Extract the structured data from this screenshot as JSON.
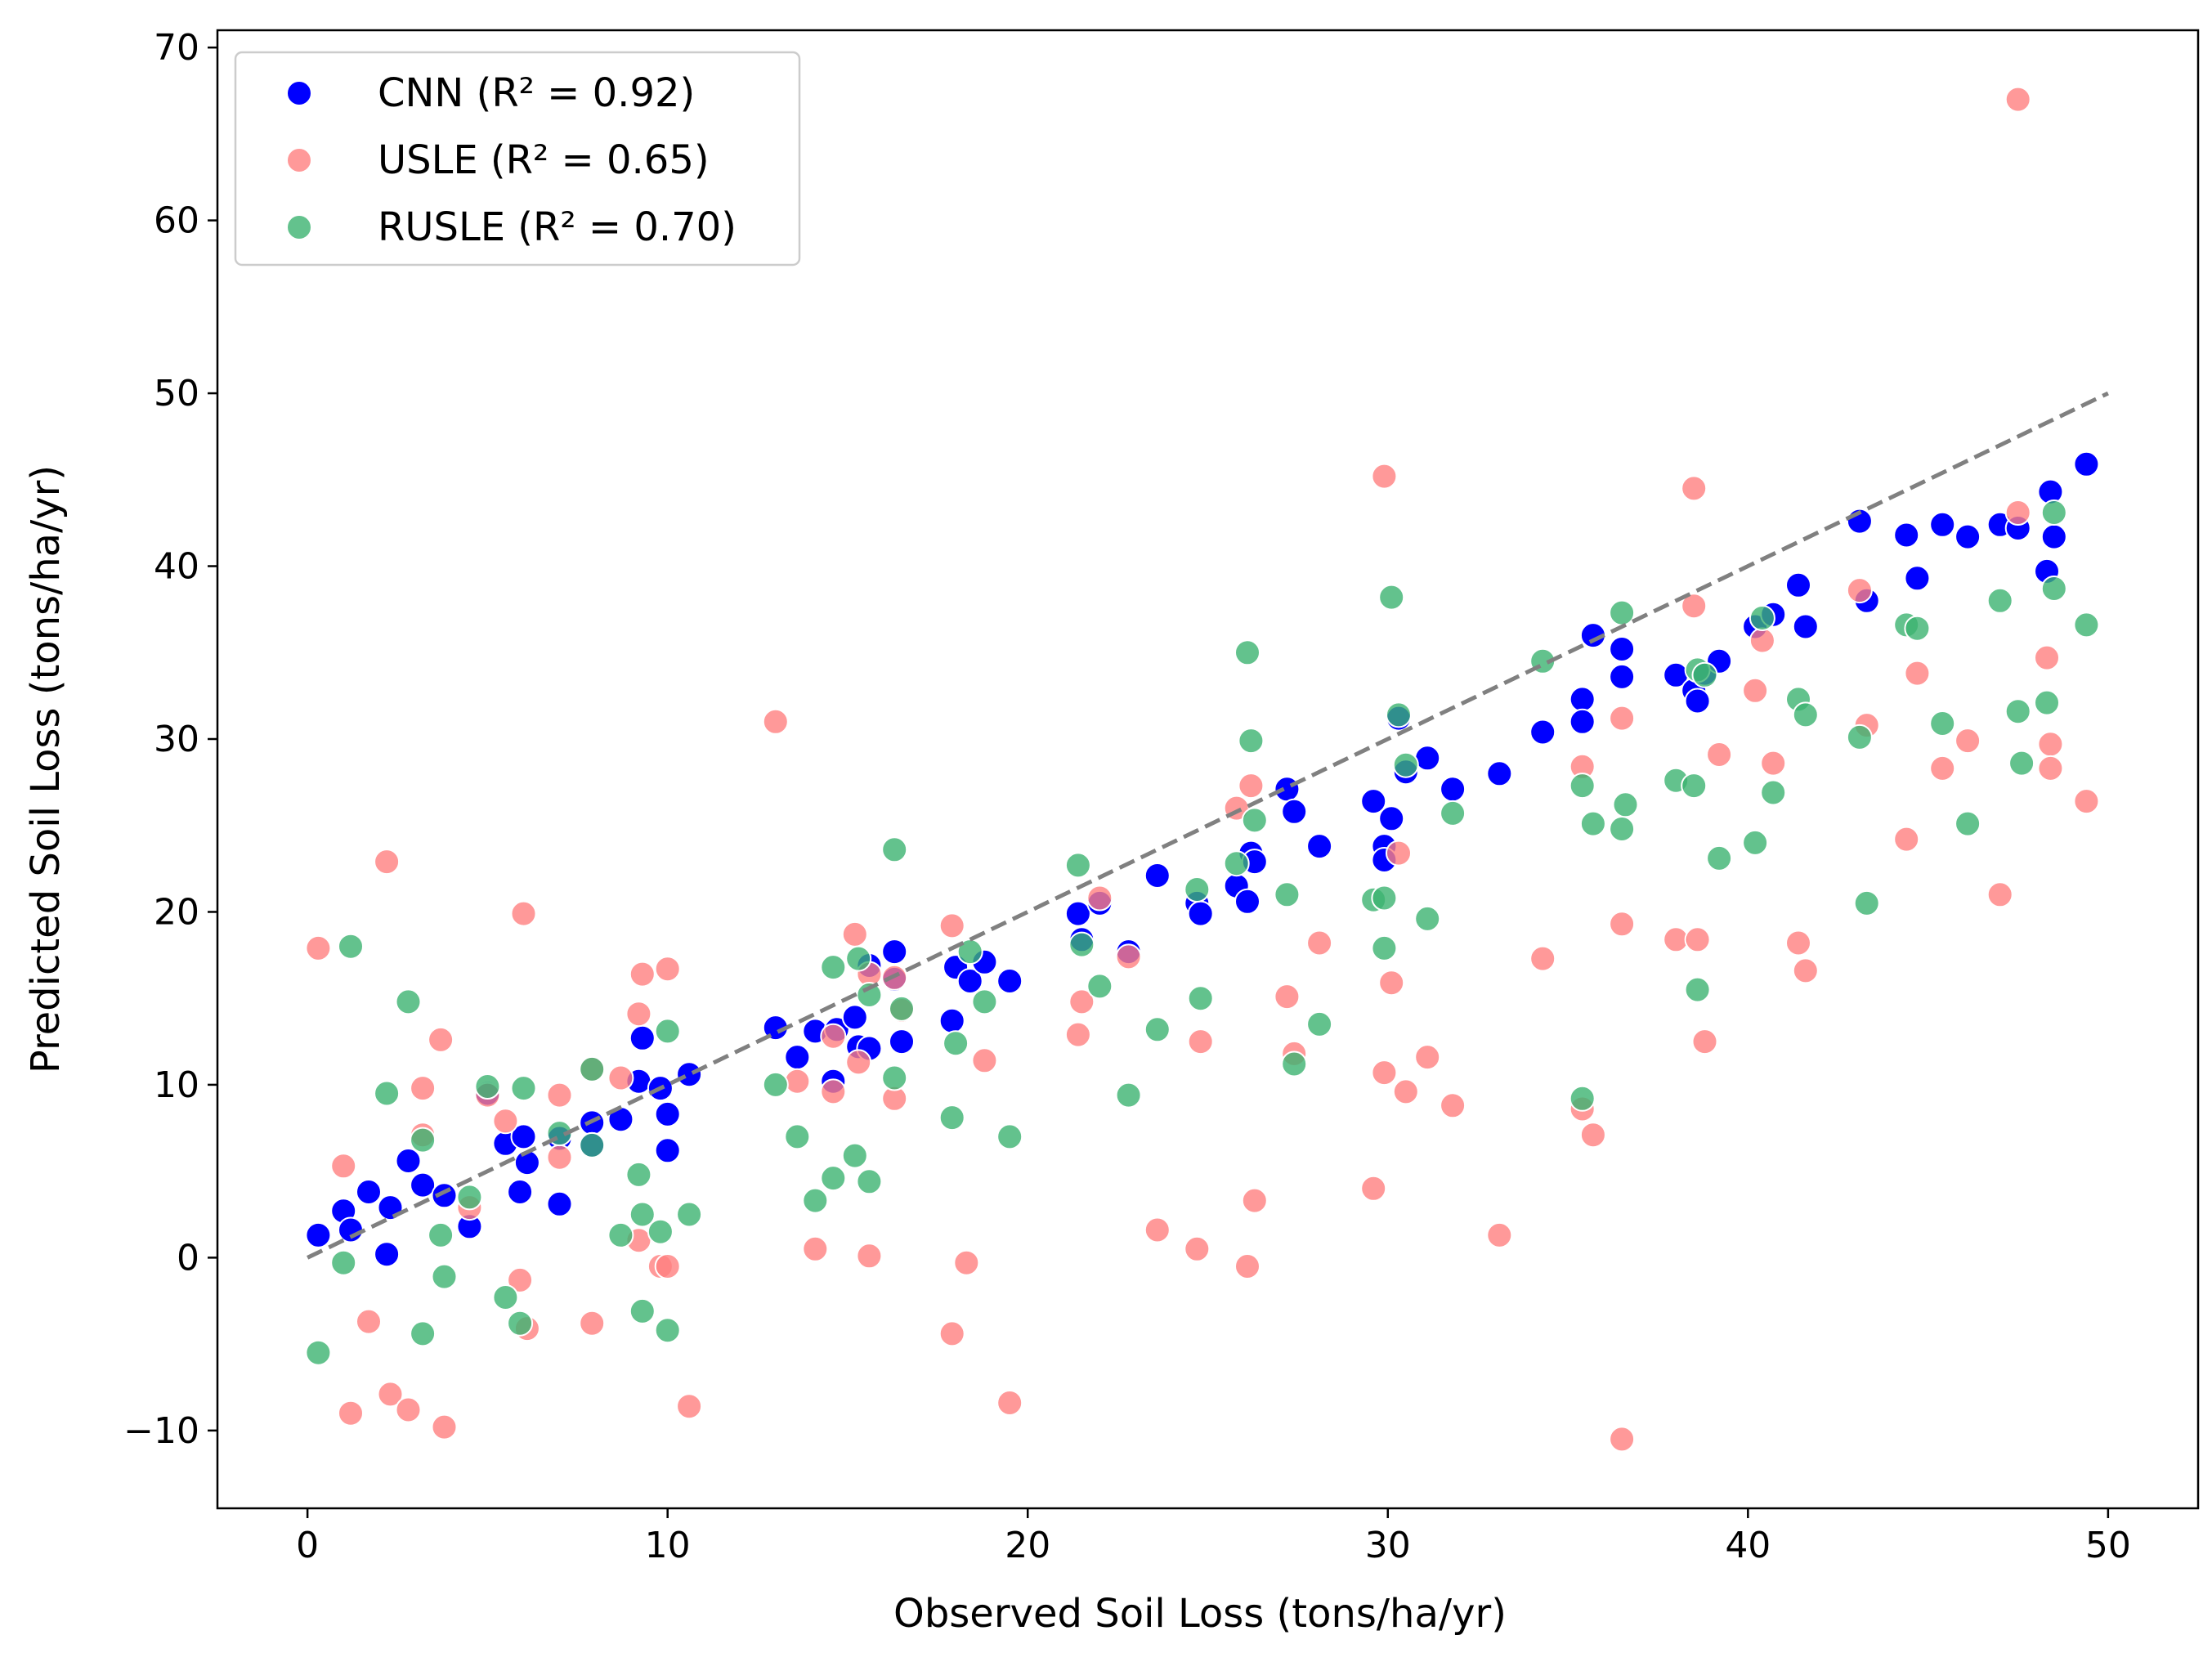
{
  "chart_data": {
    "type": "scatter",
    "title": "",
    "xlabel": "Observed Soil Loss (tons/ha/yr)",
    "ylabel": "Predicted Soil Loss (tons/ha/yr)",
    "xlim": [
      -2.5,
      52.5
    ],
    "ylim": [
      -14.5,
      71
    ],
    "xticks": [
      0,
      10,
      20,
      30,
      40,
      50
    ],
    "yticks": [
      -10,
      0,
      10,
      20,
      30,
      40,
      50,
      60,
      70
    ],
    "ytick_labels": [
      "−10",
      "0",
      "10",
      "20",
      "30",
      "40",
      "50",
      "60",
      "70"
    ],
    "grid": false,
    "legend_position": "top-left",
    "reference_line": {
      "x": [
        0,
        50
      ],
      "y": [
        0,
        50
      ],
      "color": "#808080",
      "style": "dashed"
    },
    "series": [
      {
        "name": "CNN (R² = 0.92)",
        "color": "#0000ff",
        "points": [
          [
            0.3,
            1.3
          ],
          [
            1.0,
            2.7
          ],
          [
            1.2,
            1.6
          ],
          [
            1.7,
            3.8
          ],
          [
            2.2,
            0.2
          ],
          [
            2.3,
            2.9
          ],
          [
            2.8,
            5.6
          ],
          [
            3.2,
            4.2
          ],
          [
            3.8,
            3.6
          ],
          [
            4.5,
            1.8
          ],
          [
            5.0,
            9.5
          ],
          [
            5.5,
            6.6
          ],
          [
            5.9,
            3.8
          ],
          [
            6.0,
            7.0
          ],
          [
            6.1,
            5.5
          ],
          [
            7.0,
            3.1
          ],
          [
            7.0,
            6.9
          ],
          [
            7.9,
            7.8
          ],
          [
            7.9,
            6.5
          ],
          [
            8.7,
            8.0
          ],
          [
            9.2,
            10.2
          ],
          [
            9.3,
            12.7
          ],
          [
            9.8,
            9.8
          ],
          [
            10.0,
            8.3
          ],
          [
            10.0,
            6.2
          ],
          [
            10.6,
            10.6
          ],
          [
            13.0,
            13.3
          ],
          [
            13.6,
            11.6
          ],
          [
            14.1,
            13.1
          ],
          [
            14.6,
            10.2
          ],
          [
            14.7,
            13.2
          ],
          [
            15.2,
            13.9
          ],
          [
            15.3,
            12.2
          ],
          [
            15.6,
            12.1
          ],
          [
            15.6,
            16.9
          ],
          [
            16.3,
            16.1
          ],
          [
            16.3,
            17.7
          ],
          [
            16.5,
            12.5
          ],
          [
            17.9,
            13.7
          ],
          [
            18.0,
            16.8
          ],
          [
            18.4,
            16.0
          ],
          [
            18.8,
            17.1
          ],
          [
            19.5,
            16.0
          ],
          [
            21.4,
            19.9
          ],
          [
            21.5,
            18.4
          ],
          [
            22.0,
            20.5
          ],
          [
            22.8,
            17.7
          ],
          [
            23.6,
            22.1
          ],
          [
            24.7,
            20.5
          ],
          [
            24.8,
            19.9
          ],
          [
            25.8,
            21.5
          ],
          [
            26.1,
            20.6
          ],
          [
            26.2,
            23.4
          ],
          [
            26.3,
            22.9
          ],
          [
            27.2,
            27.1
          ],
          [
            27.4,
            25.8
          ],
          [
            28.1,
            23.8
          ],
          [
            29.6,
            26.4
          ],
          [
            29.9,
            23.8
          ],
          [
            29.9,
            23.0
          ],
          [
            30.1,
            25.4
          ],
          [
            30.3,
            31.2
          ],
          [
            30.5,
            28.1
          ],
          [
            31.1,
            28.9
          ],
          [
            31.8,
            27.1
          ],
          [
            33.1,
            28.0
          ],
          [
            34.3,
            30.4
          ],
          [
            35.4,
            32.3
          ],
          [
            35.4,
            31.0
          ],
          [
            35.7,
            36.0
          ],
          [
            36.5,
            35.2
          ],
          [
            36.5,
            33.6
          ],
          [
            38.0,
            33.7
          ],
          [
            38.5,
            32.8
          ],
          [
            38.6,
            32.2
          ],
          [
            38.8,
            33.8
          ],
          [
            39.2,
            34.5
          ],
          [
            40.2,
            36.5
          ],
          [
            40.7,
            37.2
          ],
          [
            41.4,
            38.9
          ],
          [
            41.6,
            36.5
          ],
          [
            43.1,
            42.6
          ],
          [
            43.3,
            38.0
          ],
          [
            44.4,
            41.8
          ],
          [
            44.7,
            39.3
          ],
          [
            45.4,
            42.4
          ],
          [
            46.1,
            41.7
          ],
          [
            47.0,
            42.4
          ],
          [
            47.5,
            42.2
          ],
          [
            48.3,
            39.7
          ],
          [
            48.4,
            44.3
          ],
          [
            48.5,
            41.7
          ],
          [
            49.4,
            45.9
          ]
        ]
      },
      {
        "name": "USLE (R² = 0.65)",
        "color": "#ff8080",
        "points": [
          [
            0.3,
            17.9
          ],
          [
            1.0,
            5.3
          ],
          [
            1.2,
            -9.0
          ],
          [
            1.7,
            -3.7
          ],
          [
            2.2,
            22.9
          ],
          [
            2.3,
            -7.9
          ],
          [
            2.8,
            -8.8
          ],
          [
            3.2,
            9.8
          ],
          [
            3.2,
            7.1
          ],
          [
            3.7,
            12.6
          ],
          [
            3.8,
            -9.8
          ],
          [
            4.5,
            2.9
          ],
          [
            5.0,
            9.4
          ],
          [
            5.5,
            7.9
          ],
          [
            5.9,
            -1.3
          ],
          [
            6.0,
            19.9
          ],
          [
            6.1,
            -4.1
          ],
          [
            7.0,
            5.8
          ],
          [
            7.0,
            9.4
          ],
          [
            7.9,
            10.9
          ],
          [
            7.9,
            -3.8
          ],
          [
            8.7,
            10.4
          ],
          [
            9.2,
            1.0
          ],
          [
            9.2,
            14.1
          ],
          [
            9.3,
            16.4
          ],
          [
            9.8,
            -0.5
          ],
          [
            10.0,
            16.7
          ],
          [
            10.0,
            -0.5
          ],
          [
            10.6,
            -8.6
          ],
          [
            13.0,
            31.0
          ],
          [
            13.6,
            10.2
          ],
          [
            14.1,
            0.5
          ],
          [
            14.6,
            9.6
          ],
          [
            14.6,
            12.8
          ],
          [
            15.2,
            18.7
          ],
          [
            15.3,
            11.3
          ],
          [
            15.6,
            0.1
          ],
          [
            15.6,
            16.4
          ],
          [
            16.3,
            9.2
          ],
          [
            16.3,
            16.2
          ],
          [
            16.5,
            14.3
          ],
          [
            17.9,
            19.2
          ],
          [
            17.9,
            -4.4
          ],
          [
            18.3,
            -0.3
          ],
          [
            18.8,
            11.4
          ],
          [
            19.5,
            -8.4
          ],
          [
            21.4,
            12.9
          ],
          [
            21.5,
            14.8
          ],
          [
            22.0,
            20.8
          ],
          [
            22.8,
            17.4
          ],
          [
            23.6,
            1.6
          ],
          [
            24.7,
            0.5
          ],
          [
            24.8,
            12.5
          ],
          [
            25.8,
            26.0
          ],
          [
            26.1,
            -0.5
          ],
          [
            26.2,
            27.3
          ],
          [
            26.3,
            3.3
          ],
          [
            27.2,
            15.1
          ],
          [
            27.4,
            11.8
          ],
          [
            28.1,
            18.2
          ],
          [
            29.6,
            4.0
          ],
          [
            29.9,
            45.2
          ],
          [
            29.9,
            10.7
          ],
          [
            30.1,
            15.9
          ],
          [
            30.3,
            23.4
          ],
          [
            30.5,
            9.6
          ],
          [
            31.1,
            11.6
          ],
          [
            31.8,
            8.8
          ],
          [
            33.1,
            1.3
          ],
          [
            34.3,
            17.3
          ],
          [
            35.4,
            8.6
          ],
          [
            35.4,
            28.4
          ],
          [
            35.7,
            7.1
          ],
          [
            36.5,
            -10.5
          ],
          [
            36.5,
            31.2
          ],
          [
            36.5,
            19.3
          ],
          [
            38.0,
            18.4
          ],
          [
            38.5,
            37.7
          ],
          [
            38.5,
            44.5
          ],
          [
            38.6,
            18.4
          ],
          [
            38.8,
            12.5
          ],
          [
            39.2,
            29.1
          ],
          [
            40.2,
            32.8
          ],
          [
            40.4,
            35.7
          ],
          [
            40.7,
            28.6
          ],
          [
            41.4,
            18.2
          ],
          [
            41.6,
            16.6
          ],
          [
            43.1,
            38.6
          ],
          [
            43.3,
            30.8
          ],
          [
            44.4,
            24.2
          ],
          [
            44.7,
            33.8
          ],
          [
            45.4,
            28.3
          ],
          [
            46.1,
            29.9
          ],
          [
            47.0,
            21.0
          ],
          [
            47.5,
            43.1
          ],
          [
            47.5,
            67.0
          ],
          [
            48.3,
            34.7
          ],
          [
            48.4,
            29.7
          ],
          [
            48.4,
            28.3
          ],
          [
            49.4,
            26.4
          ]
        ]
      },
      {
        "name": "RUSLE (R² = 0.70)",
        "color": "#3cb371",
        "points": [
          [
            0.3,
            -5.5
          ],
          [
            1.0,
            -0.3
          ],
          [
            1.2,
            18.0
          ],
          [
            2.2,
            9.5
          ],
          [
            2.8,
            14.8
          ],
          [
            3.2,
            6.8
          ],
          [
            3.2,
            -4.4
          ],
          [
            3.7,
            1.3
          ],
          [
            3.8,
            -1.1
          ],
          [
            4.5,
            3.5
          ],
          [
            5.0,
            9.9
          ],
          [
            5.5,
            -2.3
          ],
          [
            5.9,
            -3.8
          ],
          [
            6.0,
            9.8
          ],
          [
            7.0,
            7.2
          ],
          [
            7.9,
            6.5
          ],
          [
            7.9,
            10.9
          ],
          [
            8.7,
            1.3
          ],
          [
            9.2,
            4.8
          ],
          [
            9.3,
            2.5
          ],
          [
            9.3,
            -3.1
          ],
          [
            9.8,
            1.5
          ],
          [
            10.0,
            -4.2
          ],
          [
            10.0,
            13.1
          ],
          [
            10.6,
            2.5
          ],
          [
            13.0,
            10.0
          ],
          [
            13.6,
            7.0
          ],
          [
            14.1,
            3.3
          ],
          [
            14.6,
            4.6
          ],
          [
            14.6,
            16.8
          ],
          [
            15.2,
            5.9
          ],
          [
            15.3,
            17.3
          ],
          [
            15.6,
            4.4
          ],
          [
            15.6,
            15.2
          ],
          [
            16.3,
            10.4
          ],
          [
            16.3,
            23.6
          ],
          [
            16.5,
            14.4
          ],
          [
            17.9,
            8.1
          ],
          [
            18.0,
            12.4
          ],
          [
            18.4,
            17.7
          ],
          [
            18.8,
            14.8
          ],
          [
            19.5,
            7.0
          ],
          [
            21.4,
            22.7
          ],
          [
            21.5,
            18.1
          ],
          [
            22.0,
            15.7
          ],
          [
            22.8,
            9.4
          ],
          [
            23.6,
            13.2
          ],
          [
            24.7,
            21.3
          ],
          [
            24.8,
            15.0
          ],
          [
            25.8,
            22.8
          ],
          [
            26.1,
            35.0
          ],
          [
            26.2,
            29.9
          ],
          [
            26.3,
            25.3
          ],
          [
            27.2,
            21.0
          ],
          [
            27.4,
            11.2
          ],
          [
            28.1,
            13.5
          ],
          [
            29.6,
            20.7
          ],
          [
            29.9,
            17.9
          ],
          [
            29.9,
            20.8
          ],
          [
            30.1,
            38.2
          ],
          [
            30.3,
            31.4
          ],
          [
            30.5,
            28.5
          ],
          [
            31.1,
            19.6
          ],
          [
            31.8,
            25.7
          ],
          [
            34.3,
            34.5
          ],
          [
            35.4,
            27.3
          ],
          [
            35.4,
            9.2
          ],
          [
            35.7,
            25.1
          ],
          [
            36.5,
            37.3
          ],
          [
            36.5,
            24.8
          ],
          [
            36.6,
            26.2
          ],
          [
            38.0,
            27.6
          ],
          [
            38.5,
            27.3
          ],
          [
            38.6,
            15.5
          ],
          [
            38.6,
            34.0
          ],
          [
            38.8,
            33.7
          ],
          [
            39.2,
            23.1
          ],
          [
            40.2,
            24.0
          ],
          [
            40.4,
            37.0
          ],
          [
            40.7,
            26.9
          ],
          [
            41.4,
            32.3
          ],
          [
            41.6,
            31.4
          ],
          [
            43.1,
            30.1
          ],
          [
            43.3,
            20.5
          ],
          [
            44.4,
            36.6
          ],
          [
            44.7,
            36.4
          ],
          [
            45.4,
            30.9
          ],
          [
            46.1,
            25.1
          ],
          [
            47.0,
            38.0
          ],
          [
            47.5,
            31.6
          ],
          [
            47.6,
            28.6
          ],
          [
            48.3,
            32.1
          ],
          [
            48.5,
            38.7
          ],
          [
            48.5,
            43.1
          ],
          [
            49.4,
            36.6
          ]
        ]
      }
    ]
  }
}
